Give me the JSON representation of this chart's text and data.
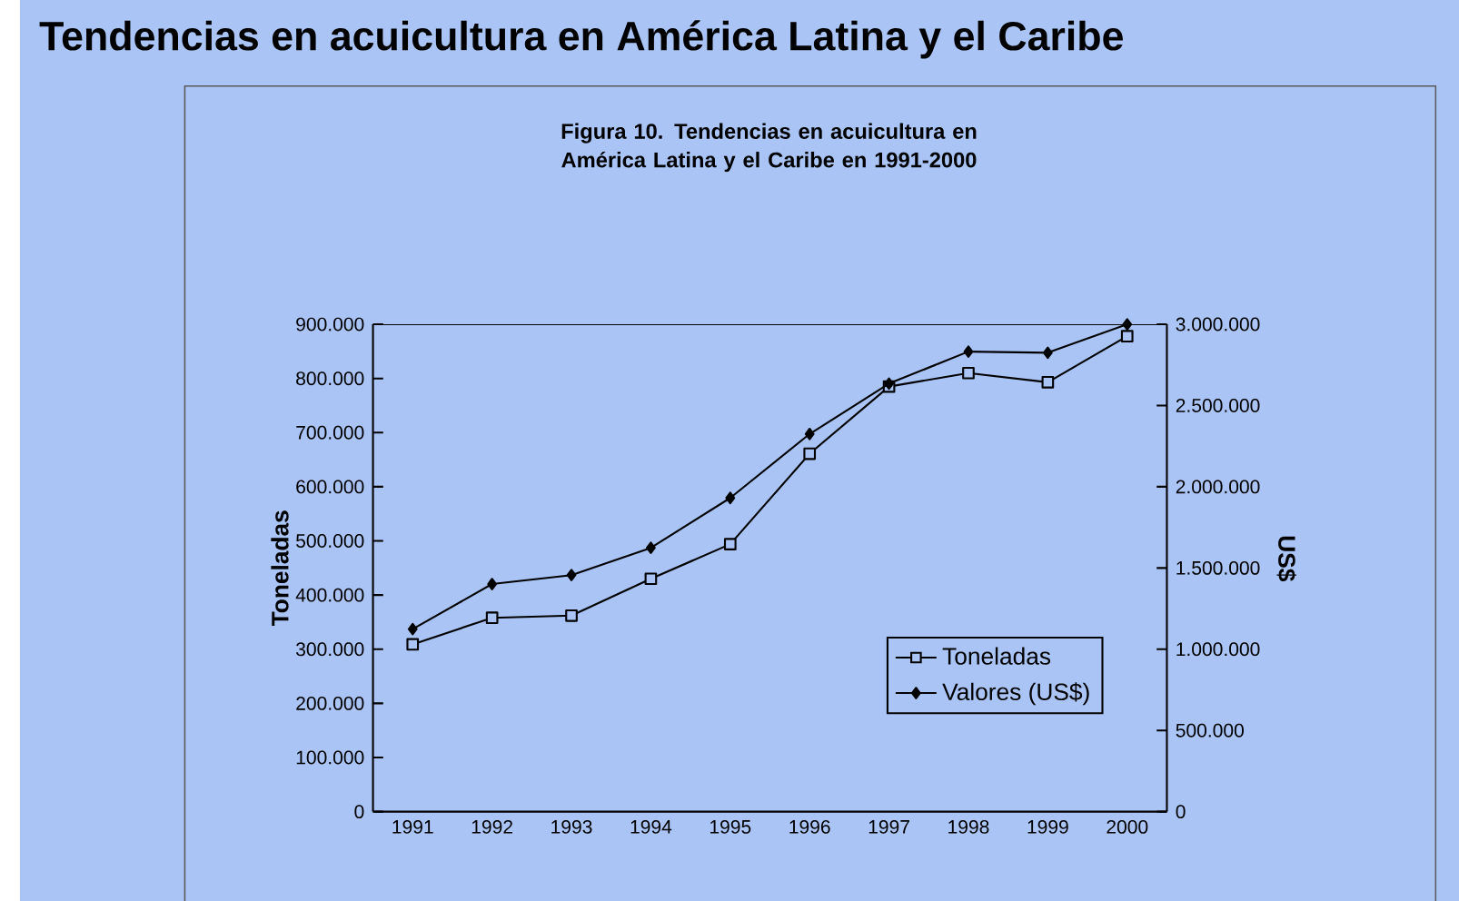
{
  "chart_data": {
    "type": "line",
    "title": "Tendencias en acuicultura en América Latina y el Caribe",
    "subtitle": "Figura 10. Tendencias en acuicultura en América Latina y el Caribe en 1991-2000",
    "ylabel": "Toneladas",
    "y2label": "US$",
    "categories": [
      "1991",
      "1992",
      "1993",
      "1994",
      "1995",
      "1996",
      "1997",
      "1998",
      "1999",
      "2000"
    ],
    "series": [
      {
        "name": "Toneladas",
        "color": "#000000",
        "marker": "square",
        "values": [
          309000,
          358000,
          362000,
          430000,
          494000,
          661000,
          785000,
          810000,
          793000,
          878000
        ]
      },
      {
        "name": "Valores (US$)",
        "color": "#000000",
        "marker": "diamond",
        "axis": "y2",
        "values": [
          1124000,
          1401000,
          1456000,
          1624000,
          1931000,
          2325000,
          2635000,
          2832000,
          2825000,
          3000000
        ]
      }
    ],
    "ylim": [
      0,
      900000
    ],
    "yticks": [
      {
        "value": 0,
        "label": "0"
      },
      {
        "value": 100000,
        "label": "100.000"
      },
      {
        "value": 200000,
        "label": "200.000"
      },
      {
        "value": 300000,
        "label": "300.000"
      },
      {
        "value": 400000,
        "label": "400.000"
      },
      {
        "value": 500000,
        "label": "500.000"
      },
      {
        "value": 600000,
        "label": "600.000"
      },
      {
        "value": 700000,
        "label": "700.000"
      },
      {
        "value": 800000,
        "label": "800.000"
      },
      {
        "value": 900000,
        "label": "900.000"
      }
    ],
    "y2lim": [
      0,
      3000000
    ],
    "y2ticks": [
      {
        "value": 0,
        "label": "0"
      },
      {
        "value": 500000,
        "label": "500.000"
      },
      {
        "value": 1000000,
        "label": "1.000.000"
      },
      {
        "value": 1500000,
        "label": "1.500.000"
      },
      {
        "value": 2000000,
        "label": "2.000.000"
      },
      {
        "value": 2500000,
        "label": "2.500.000"
      },
      {
        "value": 3000000,
        "label": "3.000.000"
      }
    ],
    "legend": "bottom right",
    "grid": false,
    "line_style": "solid"
  }
}
